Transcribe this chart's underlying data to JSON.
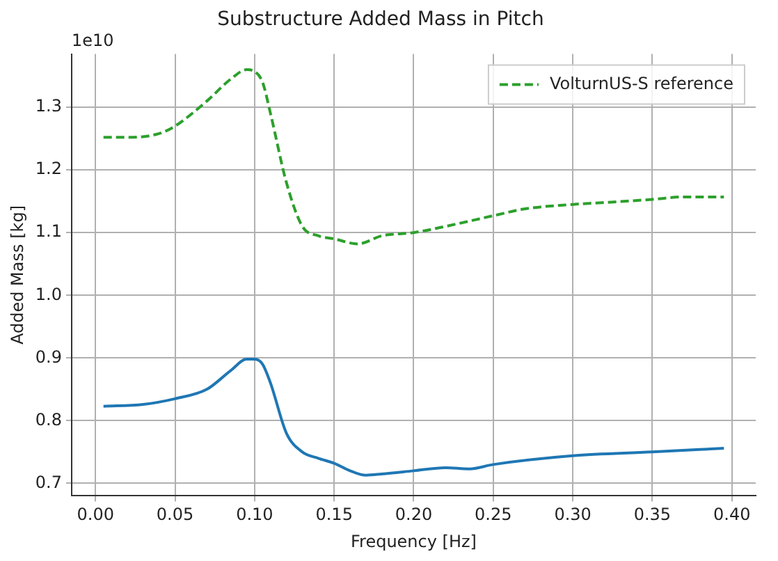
{
  "chart_data": {
    "type": "line",
    "title": "Substructure Added Mass in Pitch",
    "xlabel": "Frequency [Hz]",
    "ylabel": "Added Mass [kg]",
    "annotations": [
      "1e10"
    ],
    "xlim": [
      -0.015,
      0.415
    ],
    "xticks": [
      {
        "value": 0,
        "label": "0.00"
      },
      {
        "value": 0.05,
        "label": "0.05"
      },
      {
        "value": 0.1,
        "label": "0.10"
      },
      {
        "value": 0.15,
        "label": "0.15"
      },
      {
        "value": 0.2,
        "label": "0.20"
      },
      {
        "value": 0.25,
        "label": "0.25"
      },
      {
        "value": 0.3,
        "label": "0.30"
      },
      {
        "value": 0.35,
        "label": "0.35"
      },
      {
        "value": 0.4,
        "label": "0.40"
      }
    ],
    "ylim": [
      0.68,
      1.385
    ],
    "yticks": [
      0.7,
      {
        "value": 0.8,
        "label": "0.8"
      },
      {
        "value": 0.9,
        "label": "0.9"
      },
      {
        "value": 1.0,
        "label": "1.0"
      },
      1.1,
      1.2,
      1.3
    ],
    "grid": true,
    "legend": "top right",
    "marker": "none",
    "series": [
      {
        "color": "#1f77b4",
        "line_style": "solid",
        "x": [
          0.005,
          0.03,
          0.05,
          0.07,
          0.085,
          0.095,
          0.1,
          0.105,
          0.11,
          0.12,
          0.13,
          0.14,
          0.15,
          0.16,
          0.17,
          0.18,
          0.2,
          0.22,
          0.235,
          0.25,
          0.3,
          0.35,
          0.395
        ],
        "values": [
          0.823,
          0.826,
          0.835,
          0.85,
          0.88,
          0.898,
          0.898,
          0.89,
          0.86,
          0.78,
          0.75,
          0.74,
          0.732,
          0.72,
          0.713,
          0.715,
          0.72,
          0.725,
          0.723,
          0.73,
          0.744,
          0.75,
          0.756
        ]
      },
      {
        "name": "VolturnUS-S reference",
        "color": "#2ca02c",
        "line_style": "dashed",
        "x": [
          0.005,
          0.02,
          0.04,
          0.05,
          0.07,
          0.085,
          0.095,
          0.1,
          0.105,
          0.11,
          0.12,
          0.13,
          0.14,
          0.15,
          0.165,
          0.18,
          0.2,
          0.22,
          0.25,
          0.27,
          0.3,
          0.32,
          0.35,
          0.37,
          0.395
        ],
        "values": [
          1.252,
          1.252,
          1.258,
          1.27,
          1.31,
          1.345,
          1.36,
          1.357,
          1.34,
          1.29,
          1.18,
          1.11,
          1.095,
          1.09,
          1.082,
          1.095,
          1.1,
          1.11,
          1.127,
          1.138,
          1.145,
          1.148,
          1.153,
          1.157,
          1.157
        ]
      }
    ]
  }
}
